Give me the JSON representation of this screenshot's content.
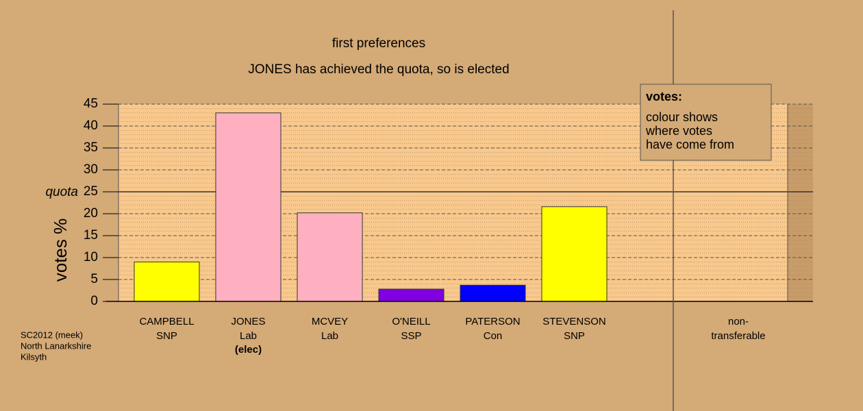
{
  "chart_data": {
    "type": "bar",
    "title": "first preferences",
    "subtitle": "JONES has achieved the quota, so is elected",
    "ylabel": "votes %",
    "categories": [
      "CAMPBELL",
      "JONES",
      "MCVEY",
      "O'NEILL",
      "PATERSON",
      "STEVENSON"
    ],
    "parties": [
      "SNP",
      "Lab",
      "Lab",
      "SSP",
      "Con",
      "SNP"
    ],
    "status": [
      null,
      "(elec)",
      null,
      null,
      null,
      null
    ],
    "values": [
      9.0,
      43.0,
      20.2,
      2.8,
      3.7,
      21.6
    ],
    "colors": [
      "#ffff00",
      "#ffb0c0",
      "#ffb0c0",
      "#8000e0",
      "#0000ff",
      "#ffff00"
    ],
    "ylim": [
      0,
      45
    ],
    "yticks": [
      0,
      5,
      10,
      15,
      20,
      25,
      30,
      35,
      40,
      45
    ],
    "quota": {
      "value": 25,
      "label": "quota"
    },
    "extra_category": [
      "non-",
      "transferable"
    ],
    "legend": {
      "title": "votes:",
      "lines": [
        "colour shows",
        "where votes",
        "have come from"
      ]
    },
    "grid": true
  },
  "footer": [
    "SC2012 (meek)",
    "North Lanarkshire",
    "Kilsyth"
  ]
}
